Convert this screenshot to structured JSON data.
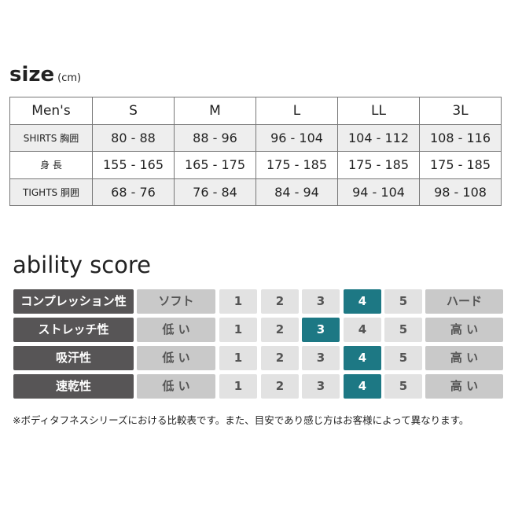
{
  "size": {
    "title": "size",
    "unit": "(cm)",
    "headers": [
      "Men's",
      "S",
      "M",
      "L",
      "LL",
      "3L"
    ],
    "rows": [
      {
        "label": "SHIRTS 胸囲",
        "values": [
          "80 - 88",
          "88 - 96",
          "96 - 104",
          "104 - 112",
          "108 - 116"
        ]
      },
      {
        "label": "身 長",
        "values": [
          "155 - 165",
          "165 - 175",
          "175 - 185",
          "175 - 185",
          "175 - 185"
        ]
      },
      {
        "label": "TIGHTS 胴囲",
        "values": [
          "68 - 76",
          "76 - 84",
          "84 - 94",
          "94 - 104",
          "98 - 108"
        ]
      }
    ]
  },
  "ability": {
    "title": "ability score",
    "scale": [
      "1",
      "2",
      "3",
      "4",
      "5"
    ],
    "highlight_color": "#1d7884",
    "rows": [
      {
        "label": "コンプレッション性",
        "low": "ソフト",
        "high": "ハード",
        "score": 4
      },
      {
        "label": "ストレッチ性",
        "low": "低 い",
        "high": "高 い",
        "score": 3
      },
      {
        "label": "吸汗性",
        "low": "低 い",
        "high": "高 い",
        "score": 4
      },
      {
        "label": "速乾性",
        "low": "低 い",
        "high": "高 い",
        "score": 4
      }
    ]
  },
  "note": "※ボディタフネスシリーズにおける比較表です。また、目安であり感じ方はお客様によって異なります。"
}
